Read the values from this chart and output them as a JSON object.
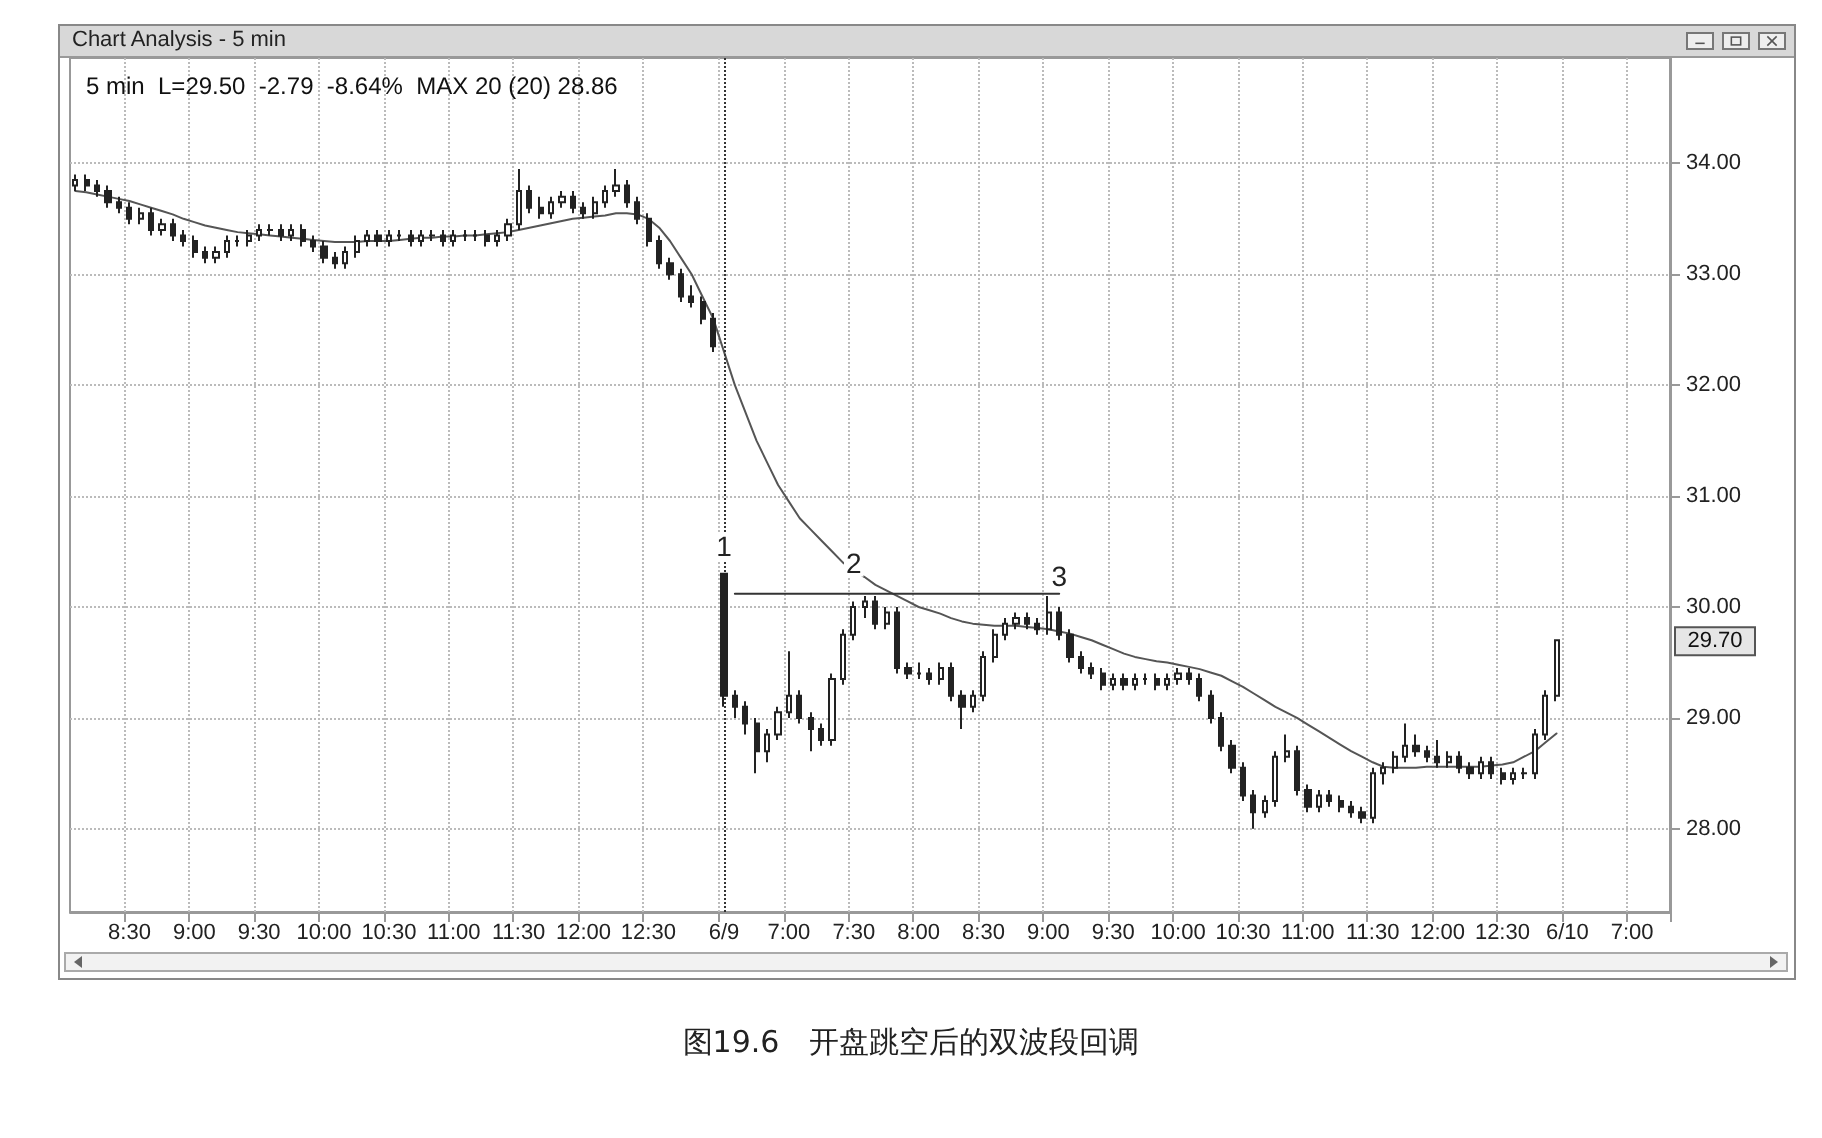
{
  "chart_data": {
    "type": "candlestick",
    "title": "Chart Analysis - 5 min",
    "subtitle": "5 min  L=29.50  -2.79  -8.64%  MAX 20 (20) 28.86",
    "categories": [
      null,
      null,
      null,
      null,
      null,
      "8:30",
      null,
      null,
      null,
      null,
      null,
      "9:00",
      null,
      null,
      null,
      null,
      null,
      "9:30",
      null,
      null,
      null,
      null,
      null,
      "10:00",
      null,
      null,
      null,
      null,
      null,
      "10:30",
      null,
      null,
      null,
      null,
      null,
      "11:00",
      null,
      null,
      null,
      null,
      null,
      "11:30",
      null,
      null,
      null,
      null,
      null,
      "12:00",
      null,
      null,
      null,
      null,
      null,
      "12:30",
      null,
      null,
      null,
      null,
      null,
      null,
      "6/9",
      null,
      null,
      null,
      null,
      null,
      "7:00",
      null,
      null,
      null,
      null,
      null,
      "7:30",
      null,
      null,
      null,
      null,
      null,
      "8:00",
      null,
      null,
      null,
      null,
      null,
      "8:30",
      null,
      null,
      null,
      null,
      null,
      "9:00",
      null,
      null,
      null,
      null,
      null,
      "9:30",
      null,
      null,
      null,
      null,
      null,
      "10:00",
      null,
      null,
      null,
      null,
      null,
      "10:30",
      null,
      null,
      null,
      null,
      null,
      "11:00",
      null,
      null,
      null,
      null,
      null,
      "11:30",
      null,
      null,
      null,
      null,
      null,
      "12:00",
      null,
      null,
      null,
      null,
      null,
      "12:30",
      null,
      null,
      null,
      null,
      null,
      "6/10",
      null,
      null,
      null,
      null,
      null,
      "7:00",
      null,
      null,
      null
    ],
    "ohlc": [
      [
        33.8,
        33.9,
        33.75,
        33.85
      ],
      [
        33.85,
        33.9,
        33.75,
        33.8
      ],
      [
        33.8,
        33.85,
        33.7,
        33.75
      ],
      [
        33.75,
        33.8,
        33.6,
        33.65
      ],
      [
        33.65,
        33.7,
        33.55,
        33.6
      ],
      [
        33.6,
        33.65,
        33.45,
        33.5
      ],
      [
        33.5,
        33.6,
        33.45,
        33.55
      ],
      [
        33.55,
        33.6,
        33.35,
        33.4
      ],
      [
        33.4,
        33.5,
        33.35,
        33.45
      ],
      [
        33.45,
        33.5,
        33.3,
        33.35
      ],
      [
        33.35,
        33.4,
        33.25,
        33.3
      ],
      [
        33.3,
        33.35,
        33.15,
        33.2
      ],
      [
        33.2,
        33.25,
        33.1,
        33.15
      ],
      [
        33.15,
        33.25,
        33.1,
        33.2
      ],
      [
        33.2,
        33.35,
        33.15,
        33.3
      ],
      [
        33.3,
        33.35,
        33.25,
        33.3
      ],
      [
        33.3,
        33.4,
        33.25,
        33.35
      ],
      [
        33.35,
        33.45,
        33.3,
        33.4
      ],
      [
        33.4,
        33.45,
        33.35,
        33.4
      ],
      [
        33.4,
        33.45,
        33.3,
        33.35
      ],
      [
        33.35,
        33.45,
        33.3,
        33.4
      ],
      [
        33.4,
        33.45,
        33.25,
        33.3
      ],
      [
        33.3,
        33.35,
        33.2,
        33.25
      ],
      [
        33.25,
        33.3,
        33.1,
        33.15
      ],
      [
        33.15,
        33.2,
        33.05,
        33.1
      ],
      [
        33.1,
        33.25,
        33.05,
        33.2
      ],
      [
        33.2,
        33.35,
        33.15,
        33.3
      ],
      [
        33.3,
        33.4,
        33.25,
        33.35
      ],
      [
        33.35,
        33.4,
        33.25,
        33.3
      ],
      [
        33.3,
        33.4,
        33.25,
        33.35
      ],
      [
        33.35,
        33.4,
        33.3,
        33.35
      ],
      [
        33.35,
        33.4,
        33.25,
        33.3
      ],
      [
        33.3,
        33.4,
        33.25,
        33.35
      ],
      [
        33.35,
        33.4,
        33.3,
        33.35
      ],
      [
        33.35,
        33.4,
        33.25,
        33.3
      ],
      [
        33.3,
        33.4,
        33.25,
        33.35
      ],
      [
        33.35,
        33.4,
        33.3,
        33.35
      ],
      [
        33.35,
        33.4,
        33.3,
        33.35
      ],
      [
        33.35,
        33.4,
        33.25,
        33.3
      ],
      [
        33.3,
        33.4,
        33.25,
        33.35
      ],
      [
        33.35,
        33.5,
        33.3,
        33.45
      ],
      [
        33.45,
        33.95,
        33.4,
        33.75
      ],
      [
        33.75,
        33.8,
        33.55,
        33.6
      ],
      [
        33.6,
        33.7,
        33.5,
        33.55
      ],
      [
        33.55,
        33.7,
        33.5,
        33.65
      ],
      [
        33.65,
        33.75,
        33.6,
        33.7
      ],
      [
        33.7,
        33.75,
        33.55,
        33.6
      ],
      [
        33.6,
        33.65,
        33.5,
        33.55
      ],
      [
        33.55,
        33.7,
        33.5,
        33.65
      ],
      [
        33.65,
        33.8,
        33.6,
        33.75
      ],
      [
        33.75,
        33.95,
        33.7,
        33.8
      ],
      [
        33.8,
        33.85,
        33.6,
        33.65
      ],
      [
        33.65,
        33.7,
        33.45,
        33.5
      ],
      [
        33.5,
        33.55,
        33.25,
        33.3
      ],
      [
        33.3,
        33.35,
        33.05,
        33.1
      ],
      [
        33.1,
        33.15,
        32.95,
        33.0
      ],
      [
        33.0,
        33.05,
        32.75,
        32.8
      ],
      [
        32.8,
        32.9,
        32.7,
        32.75
      ],
      [
        32.75,
        32.8,
        32.55,
        32.6
      ],
      [
        32.6,
        32.65,
        32.3,
        32.35
      ],
      [
        30.3,
        30.3,
        29.1,
        29.2
      ],
      [
        29.2,
        29.25,
        29.0,
        29.1
      ],
      [
        29.1,
        29.15,
        28.85,
        28.95
      ],
      [
        28.95,
        29.0,
        28.5,
        28.7
      ],
      [
        28.7,
        28.9,
        28.6,
        28.85
      ],
      [
        28.85,
        29.1,
        28.8,
        29.05
      ],
      [
        29.05,
        29.6,
        29.0,
        29.2
      ],
      [
        29.2,
        29.25,
        28.95,
        29.0
      ],
      [
        29.0,
        29.05,
        28.7,
        28.9
      ],
      [
        28.9,
        28.95,
        28.75,
        28.8
      ],
      [
        28.8,
        29.4,
        28.75,
        29.35
      ],
      [
        29.35,
        29.8,
        29.3,
        29.75
      ],
      [
        29.75,
        30.05,
        29.7,
        30.0
      ],
      [
        30.0,
        30.1,
        29.9,
        30.05
      ],
      [
        30.05,
        30.1,
        29.8,
        29.85
      ],
      [
        29.85,
        30.0,
        29.8,
        29.95
      ],
      [
        29.95,
        30.0,
        29.4,
        29.45
      ],
      [
        29.45,
        29.5,
        29.35,
        29.4
      ],
      [
        29.4,
        29.5,
        29.35,
        29.4
      ],
      [
        29.4,
        29.45,
        29.3,
        29.35
      ],
      [
        29.35,
        29.5,
        29.3,
        29.45
      ],
      [
        29.45,
        29.5,
        29.15,
        29.2
      ],
      [
        29.2,
        29.25,
        28.9,
        29.1
      ],
      [
        29.1,
        29.25,
        29.05,
        29.2
      ],
      [
        29.2,
        29.6,
        29.15,
        29.55
      ],
      [
        29.55,
        29.8,
        29.5,
        29.75
      ],
      [
        29.75,
        29.9,
        29.7,
        29.85
      ],
      [
        29.85,
        29.95,
        29.8,
        29.9
      ],
      [
        29.9,
        29.95,
        29.8,
        29.85
      ],
      [
        29.85,
        29.9,
        29.75,
        29.8
      ],
      [
        29.8,
        30.1,
        29.75,
        29.95
      ],
      [
        29.95,
        30.0,
        29.7,
        29.75
      ],
      [
        29.75,
        29.8,
        29.5,
        29.55
      ],
      [
        29.55,
        29.6,
        29.4,
        29.45
      ],
      [
        29.45,
        29.5,
        29.35,
        29.4
      ],
      [
        29.4,
        29.45,
        29.25,
        29.3
      ],
      [
        29.3,
        29.4,
        29.25,
        29.35
      ],
      [
        29.35,
        29.4,
        29.25,
        29.3
      ],
      [
        29.3,
        29.4,
        29.25,
        29.35
      ],
      [
        29.35,
        29.4,
        29.3,
        29.35
      ],
      [
        29.35,
        29.4,
        29.25,
        29.3
      ],
      [
        29.3,
        29.4,
        29.25,
        29.35
      ],
      [
        29.35,
        29.45,
        29.3,
        29.4
      ],
      [
        29.4,
        29.45,
        29.3,
        29.35
      ],
      [
        29.35,
        29.4,
        29.15,
        29.2
      ],
      [
        29.2,
        29.25,
        28.95,
        29.0
      ],
      [
        29.0,
        29.05,
        28.7,
        28.75
      ],
      [
        28.75,
        28.8,
        28.5,
        28.55
      ],
      [
        28.55,
        28.6,
        28.25,
        28.3
      ],
      [
        28.3,
        28.35,
        28.0,
        28.15
      ],
      [
        28.15,
        28.3,
        28.1,
        28.25
      ],
      [
        28.25,
        28.7,
        28.2,
        28.65
      ],
      [
        28.65,
        28.85,
        28.6,
        28.7
      ],
      [
        28.7,
        28.75,
        28.3,
        28.35
      ],
      [
        28.35,
        28.4,
        28.15,
        28.2
      ],
      [
        28.2,
        28.35,
        28.15,
        28.3
      ],
      [
        28.3,
        28.35,
        28.2,
        28.25
      ],
      [
        28.25,
        28.3,
        28.15,
        28.2
      ],
      [
        28.2,
        28.25,
        28.1,
        28.15
      ],
      [
        28.15,
        28.2,
        28.05,
        28.1
      ],
      [
        28.1,
        28.55,
        28.05,
        28.5
      ],
      [
        28.5,
        28.6,
        28.4,
        28.55
      ],
      [
        28.55,
        28.7,
        28.5,
        28.65
      ],
      [
        28.65,
        28.95,
        28.6,
        28.75
      ],
      [
        28.75,
        28.85,
        28.65,
        28.7
      ],
      [
        28.7,
        28.75,
        28.6,
        28.65
      ],
      [
        28.65,
        28.8,
        28.55,
        28.6
      ],
      [
        28.6,
        28.7,
        28.55,
        28.65
      ],
      [
        28.65,
        28.7,
        28.5,
        28.55
      ],
      [
        28.55,
        28.6,
        28.45,
        28.5
      ],
      [
        28.5,
        28.65,
        28.45,
        28.6
      ],
      [
        28.6,
        28.65,
        28.45,
        28.5
      ],
      [
        28.5,
        28.55,
        28.4,
        28.45
      ],
      [
        28.45,
        28.55,
        28.4,
        28.5
      ],
      [
        28.5,
        28.55,
        28.45,
        28.5
      ],
      [
        28.5,
        28.9,
        28.45,
        28.85
      ],
      [
        28.85,
        29.25,
        28.8,
        29.2
      ],
      [
        29.2,
        29.7,
        29.15,
        29.7
      ],
      null,
      null,
      null,
      null,
      null,
      null,
      null,
      null,
      null,
      null
    ],
    "series": [
      {
        "type": "line",
        "color": "#555555",
        "values": [
          33.75,
          33.74,
          33.72,
          33.7,
          33.68,
          33.66,
          33.63,
          33.6,
          33.57,
          33.54,
          33.5,
          33.47,
          33.44,
          33.42,
          33.4,
          33.38,
          33.37,
          33.36,
          33.35,
          33.34,
          33.33,
          33.32,
          33.31,
          33.3,
          33.29,
          33.29,
          33.29,
          33.3,
          33.3,
          33.3,
          33.31,
          33.32,
          33.33,
          33.33,
          33.34,
          33.34,
          33.35,
          33.35,
          33.36,
          33.37,
          33.38,
          33.4,
          33.42,
          33.44,
          33.46,
          33.48,
          33.5,
          33.51,
          33.52,
          33.53,
          33.55,
          33.55,
          33.54,
          33.5,
          33.42,
          33.3,
          33.15,
          33.0,
          32.8,
          32.6,
          32.3,
          32.0,
          31.75,
          31.5,
          31.3,
          31.1,
          30.95,
          30.8,
          30.7,
          30.6,
          30.5,
          30.4,
          30.33,
          30.27,
          30.2,
          30.15,
          30.1,
          30.05,
          30.0,
          29.97,
          29.94,
          29.9,
          29.87,
          29.85,
          29.84,
          29.83,
          29.83,
          29.83,
          29.82,
          29.81,
          29.8,
          29.78,
          29.76,
          29.73,
          29.7,
          29.66,
          29.62,
          29.58,
          29.55,
          29.53,
          29.51,
          29.5,
          29.48,
          29.46,
          29.44,
          29.41,
          29.38,
          29.33,
          29.28,
          29.22,
          29.16,
          29.1,
          29.05,
          29.0,
          28.94,
          28.88,
          28.82,
          28.76,
          28.7,
          28.65,
          28.6,
          28.56,
          28.55,
          28.55,
          28.55,
          28.56,
          28.56,
          28.56,
          28.56,
          28.56,
          28.56,
          28.57,
          28.58,
          28.6,
          28.65,
          28.7,
          28.78,
          28.86,
          null,
          null,
          null,
          null,
          null,
          null,
          null,
          null,
          null,
          null
        ]
      },
      {
        "type": "line",
        "color": "#333333",
        "values": [
          null,
          null,
          null,
          null,
          null,
          null,
          null,
          null,
          null,
          null,
          null,
          null,
          null,
          null,
          null,
          null,
          null,
          null,
          null,
          null,
          null,
          null,
          null,
          null,
          null,
          null,
          null,
          null,
          null,
          null,
          null,
          null,
          null,
          null,
          null,
          null,
          null,
          null,
          null,
          null,
          null,
          null,
          null,
          null,
          null,
          null,
          null,
          null,
          null,
          null,
          null,
          null,
          null,
          null,
          null,
          null,
          null,
          null,
          null,
          null,
          null,
          30.12,
          30.12,
          30.12,
          30.12,
          30.12,
          30.12,
          30.12,
          30.12,
          30.12,
          30.12,
          30.12,
          30.12,
          30.12,
          30.12,
          30.12,
          30.12,
          30.12,
          30.12,
          30.12,
          30.12,
          30.12,
          30.12,
          30.12,
          30.12,
          30.12,
          30.12,
          30.12,
          30.12,
          30.12,
          30.12,
          30.12,
          null,
          null,
          null,
          null,
          null,
          null,
          null,
          null,
          null,
          null,
          null,
          null,
          null,
          null,
          null,
          null,
          null,
          null,
          null,
          null,
          null,
          null,
          null,
          null,
          null,
          null,
          null,
          null,
          null,
          null,
          null,
          null,
          null,
          null,
          null,
          null,
          null,
          null,
          null,
          null,
          null,
          null,
          null,
          null,
          null,
          null,
          null,
          null,
          null,
          null,
          null,
          null,
          null,
          null,
          null,
          null
        ]
      }
    ],
    "ylim": [
      27.25,
      34.95
    ],
    "yticks": [
      {
        "value": 28,
        "label": "28.00"
      },
      {
        "value": 29,
        "label": "29.00"
      },
      {
        "value": 30,
        "label": "30.00"
      },
      {
        "value": 31,
        "label": "31.00"
      },
      {
        "value": 32,
        "label": "32.00"
      },
      {
        "value": 33,
        "label": "33.00"
      },
      {
        "value": 34,
        "label": "34.00"
      }
    ],
    "grid": true,
    "marker": "none",
    "ref_lines": [
      {
        "axis": "x",
        "value": "6/9",
        "line_style": "dotted",
        "color": "#333333"
      }
    ],
    "annotations": [
      {
        "text": "1",
        "x": "6/9",
        "y": 30.55
      },
      {
        "text": "2",
        "x": "7:30",
        "y": 30.4
      },
      {
        "text": "3",
        "y": 30.12
      },
      {
        "text": "29.70",
        "y": 29.7
      },
      "图19.6　开盘跳空后的双波段回调"
    ]
  }
}
